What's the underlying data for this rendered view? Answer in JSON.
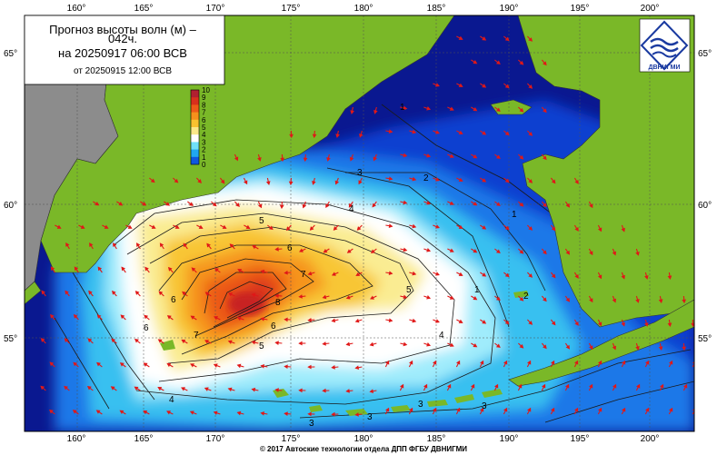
{
  "title": {
    "line1": "Прогноз высоты волн (м) –",
    "line2": "042ч.",
    "line3": "на 20250917 06:00 ВСВ",
    "line4": "от 20250915 12:00 ВСВ"
  },
  "logo": {
    "text": "ДВНИГМИ"
  },
  "footer": "© 2017 Автоские технологии отдела ДПП ФГБУ ДВНИГМИ",
  "legend": {
    "labels": [
      "10",
      "9",
      "8",
      "7",
      "6",
      "5",
      "4",
      "3",
      "2",
      "1",
      "0"
    ],
    "colors": [
      "#b02030",
      "#d8301c",
      "#ee5a18",
      "#f6901c",
      "#f8c230",
      "#fae88a",
      "#ffffff",
      "#70e0f8",
      "#20a8f0",
      "#1058e0",
      "#08149a"
    ]
  },
  "axes": {
    "lon_top": [
      "160°",
      "165°",
      "170°",
      "175°",
      "180°",
      "185°",
      "190°",
      "195°",
      "200°"
    ],
    "lon_bottom": [
      "160°",
      "165°",
      "170°",
      "175°",
      "180°",
      "185°",
      "190°",
      "195°",
      "200°"
    ],
    "lat_left": [
      "65°",
      "60°",
      "55°"
    ],
    "lat_right": [
      "65°",
      "60°",
      "55°"
    ]
  },
  "contour_labels": [
    "1",
    "1",
    "1",
    "2",
    "2",
    "3",
    "3",
    "3",
    "3",
    "3",
    "4",
    "4",
    "4",
    "5",
    "5",
    "5",
    "6",
    "6",
    "6",
    "6",
    "7",
    "7",
    "8"
  ],
  "colors": {
    "land": "#7ab828",
    "land_grey": "#8c8c8c",
    "deep_sea": "#0a1890",
    "arrow": "#e01818",
    "grid": "#505050"
  }
}
